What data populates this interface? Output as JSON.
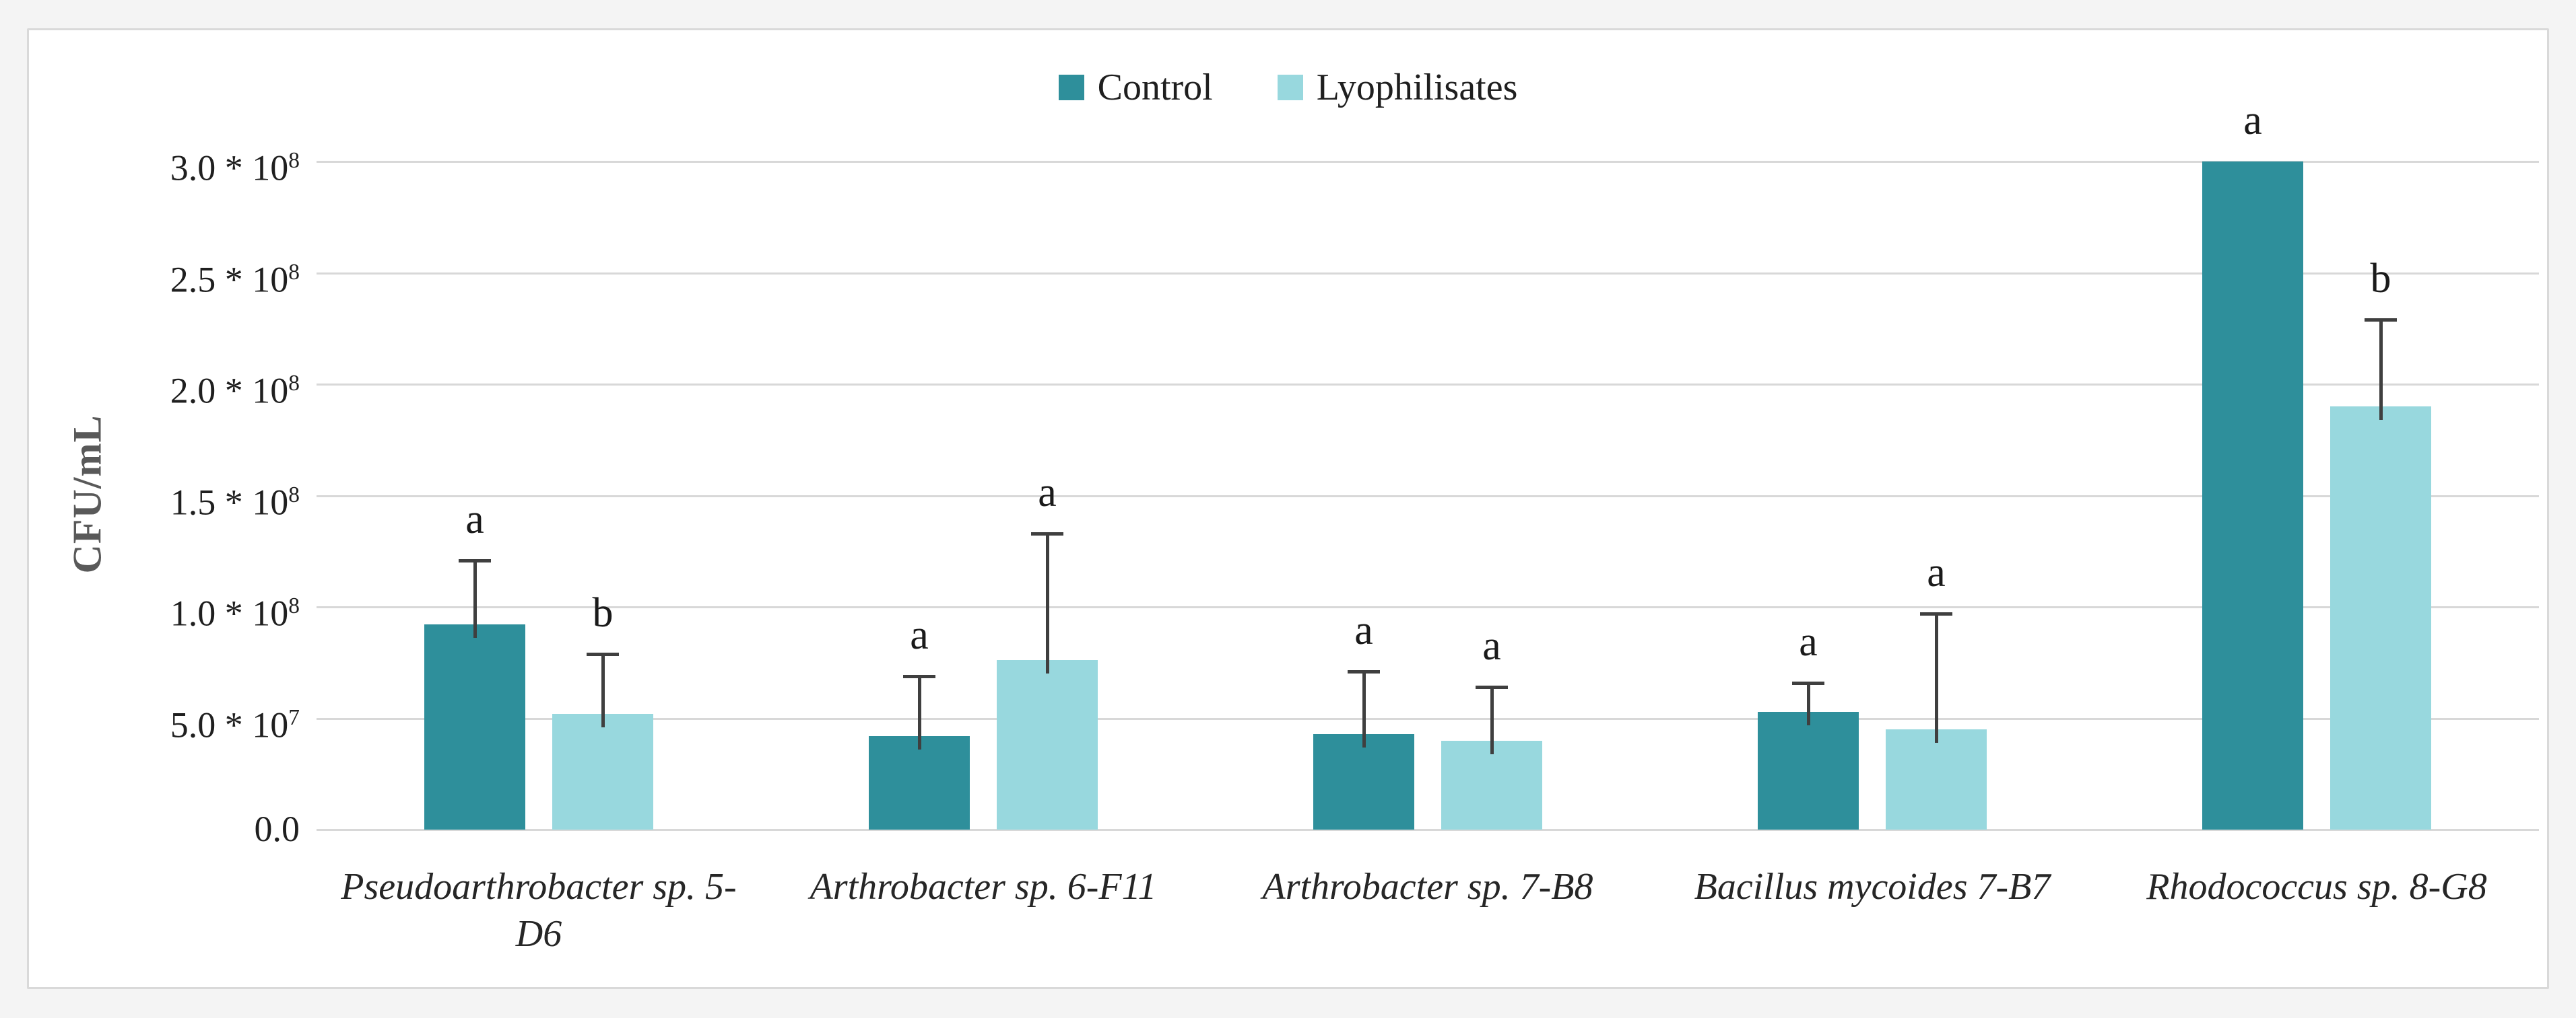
{
  "figure": {
    "page_background": "#f4f4f4",
    "plot_background": "#ffffff",
    "border_color": "#d9d9d9",
    "gridline_color": "#d8d8d8",
    "error_bar_color": "#3f3f3f",
    "axis_title_color": "#595959"
  },
  "chart_data": {
    "type": "bar",
    "title": "",
    "xlabel": "",
    "ylabel": "CFU/mL",
    "ylim": [
      0,
      300000000
    ],
    "grid": true,
    "legend_position": "top-center",
    "categories": [
      "Pseudoarthrobacter sp. 5-D6",
      "Arthrobacter sp. 6-F11",
      "Arthrobacter sp. 7-B8",
      "Bacillus mycoides 7-B7",
      "Rhodococcus sp. 8-G8"
    ],
    "category_lines": [
      [
        "Pseudoarthrobacter sp. 5-",
        "D6"
      ],
      [
        "Arthrobacter sp. 6-F11"
      ],
      [
        "Arthrobacter sp. 7-B8"
      ],
      [
        "Bacillus mycoides 7-B7"
      ],
      [
        "Rhodococcus sp. 8-G8"
      ]
    ],
    "yticks": [
      {
        "mantissa": "3.0 * 10",
        "exp": "8",
        "value": 300000000
      },
      {
        "mantissa": "2.5 * 10",
        "exp": "8",
        "value": 250000000
      },
      {
        "mantissa": "2.0 * 10",
        "exp": "8",
        "value": 200000000
      },
      {
        "mantissa": "1.5 * 10",
        "exp": "8",
        "value": 150000000
      },
      {
        "mantissa": "1.0 * 10",
        "exp": "8",
        "value": 100000000
      },
      {
        "mantissa": "5.0 * 10",
        "exp": "7",
        "value": 50000000
      },
      {
        "mantissa": "0.0",
        "exp": "",
        "value": 0
      }
    ],
    "series": [
      {
        "name": "Control",
        "color": "#2e8f9b",
        "values": [
          92000000,
          42000000,
          43000000,
          53000000,
          300000000
        ],
        "errors": [
          29000000,
          27000000,
          28000000,
          13000000,
          0
        ],
        "letters": [
          "a",
          "a",
          "a",
          "a",
          "a"
        ]
      },
      {
        "name": "Lyophilisates",
        "color": "#98d8de",
        "values": [
          52000000,
          76000000,
          40000000,
          45000000,
          190000000
        ],
        "errors": [
          27000000,
          57000000,
          24000000,
          52000000,
          39000000
        ],
        "letters": [
          "b",
          "a",
          "a",
          "a",
          "b"
        ]
      }
    ]
  }
}
